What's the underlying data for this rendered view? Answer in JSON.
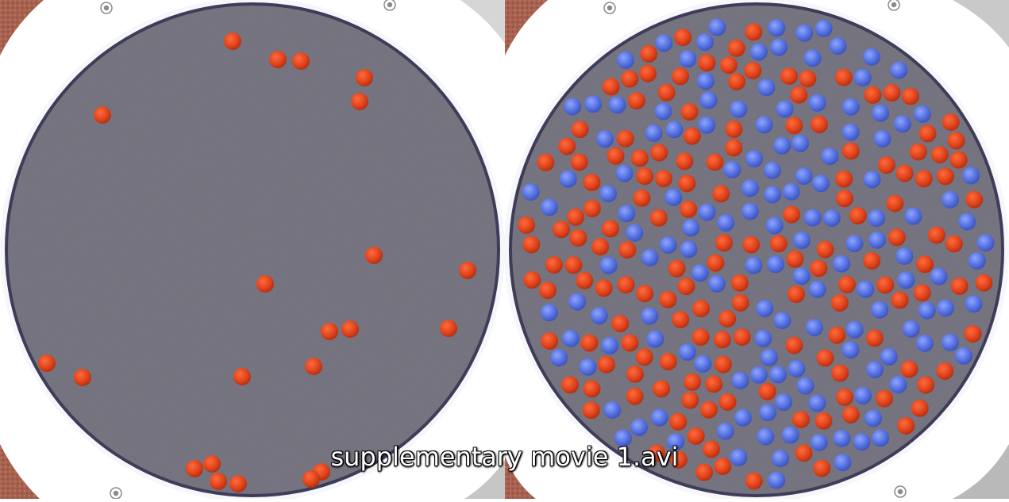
{
  "caption": "supplementary movie 1.avi",
  "colors": {
    "red_sphere": "#e0441c",
    "blue_sphere": "#5470e0",
    "floor": "#6d6c78",
    "rim": "#f6f7fb",
    "corner": "#a7614f"
  },
  "frames": [
    {
      "name": "left-frame",
      "red_count": 22,
      "blue_count": 0
    },
    {
      "name": "right-frame",
      "red_count": 150,
      "blue_count": 150
    }
  ]
}
